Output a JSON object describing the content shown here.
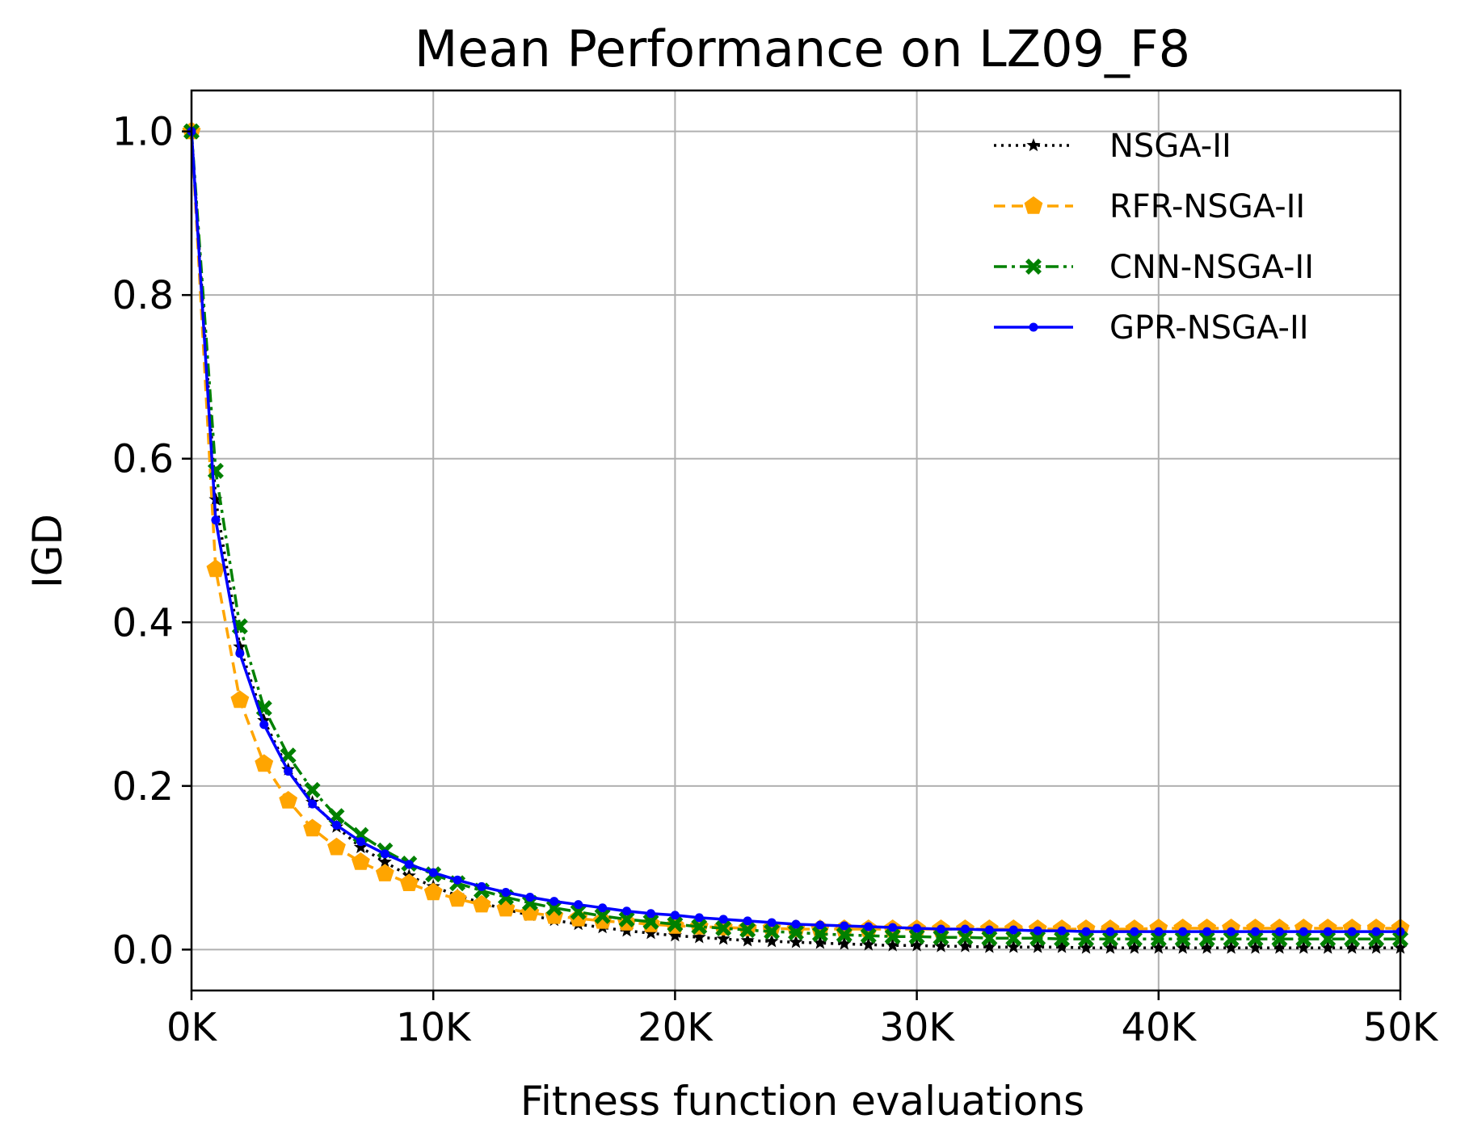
{
  "chart_data": {
    "type": "line",
    "title": "Mean Performance on LZ09_F8",
    "xlabel": "Fitness function evaluations",
    "ylabel": "IGD",
    "xlim": [
      0,
      50000
    ],
    "ylim": [
      -0.05,
      1.05
    ],
    "x_ticks": [
      0,
      10000,
      20000,
      30000,
      40000,
      50000
    ],
    "x_tick_labels": [
      "0K",
      "10K",
      "20K",
      "30K",
      "40K",
      "50K"
    ],
    "y_ticks": [
      0.0,
      0.2,
      0.4,
      0.6,
      0.8,
      1.0
    ],
    "y_tick_labels": [
      "0.0",
      "0.2",
      "0.4",
      "0.6",
      "0.8",
      "1.0"
    ],
    "grid": true,
    "legend_position": "top-right",
    "x_step": 1000,
    "series": [
      {
        "name": "NSGA-II",
        "color": "#000000",
        "line_style": "dotted",
        "marker": "star",
        "values": [
          1.0,
          0.55,
          0.37,
          0.28,
          0.22,
          0.18,
          0.15,
          0.125,
          0.107,
          0.09,
          0.077,
          0.066,
          0.057,
          0.049,
          0.042,
          0.036,
          0.031,
          0.027,
          0.023,
          0.02,
          0.017,
          0.015,
          0.013,
          0.011,
          0.01,
          0.009,
          0.008,
          0.007,
          0.006,
          0.005,
          0.005,
          0.004,
          0.004,
          0.003,
          0.003,
          0.003,
          0.003,
          0.002,
          0.002,
          0.002,
          0.002,
          0.002,
          0.002,
          0.002,
          0.002,
          0.002,
          0.002,
          0.002,
          0.002,
          0.002,
          0.002
        ]
      },
      {
        "name": "RFR-NSGA-II",
        "color": "#FFA500",
        "line_style": "dashed",
        "marker": "pentagon",
        "values": [
          1.0,
          0.465,
          0.305,
          0.227,
          0.182,
          0.148,
          0.125,
          0.107,
          0.093,
          0.081,
          0.07,
          0.062,
          0.055,
          0.05,
          0.045,
          0.041,
          0.038,
          0.035,
          0.033,
          0.031,
          0.029,
          0.028,
          0.027,
          0.026,
          0.026,
          0.025,
          0.025,
          0.025,
          0.025,
          0.025,
          0.025,
          0.025,
          0.025,
          0.025,
          0.025,
          0.025,
          0.025,
          0.025,
          0.025,
          0.025,
          0.026,
          0.026,
          0.026,
          0.026,
          0.026,
          0.026,
          0.026,
          0.026,
          0.026,
          0.026,
          0.026
        ]
      },
      {
        "name": "CNN-NSGA-II",
        "color": "#008000",
        "line_style": "dashdot",
        "marker": "x-filled",
        "values": [
          1.0,
          0.585,
          0.395,
          0.295,
          0.237,
          0.195,
          0.163,
          0.14,
          0.121,
          0.105,
          0.092,
          0.081,
          0.072,
          0.064,
          0.057,
          0.051,
          0.046,
          0.041,
          0.037,
          0.034,
          0.031,
          0.028,
          0.026,
          0.024,
          0.022,
          0.021,
          0.019,
          0.018,
          0.017,
          0.016,
          0.016,
          0.015,
          0.015,
          0.014,
          0.014,
          0.014,
          0.013,
          0.013,
          0.013,
          0.013,
          0.013,
          0.013,
          0.013,
          0.013,
          0.013,
          0.013,
          0.013,
          0.013,
          0.013,
          0.013,
          0.013
        ]
      },
      {
        "name": "GPR-NSGA-II",
        "color": "#0000FF",
        "line_style": "solid",
        "marker": "point",
        "values": [
          1.0,
          0.525,
          0.362,
          0.275,
          0.218,
          0.178,
          0.152,
          0.132,
          0.117,
          0.104,
          0.094,
          0.085,
          0.077,
          0.07,
          0.064,
          0.059,
          0.055,
          0.051,
          0.047,
          0.044,
          0.042,
          0.039,
          0.037,
          0.035,
          0.033,
          0.031,
          0.03,
          0.029,
          0.028,
          0.027,
          0.026,
          0.025,
          0.025,
          0.024,
          0.024,
          0.023,
          0.023,
          0.022,
          0.022,
          0.022,
          0.022,
          0.022,
          0.022,
          0.022,
          0.022,
          0.022,
          0.022,
          0.022,
          0.022,
          0.022,
          0.022
        ]
      }
    ]
  }
}
